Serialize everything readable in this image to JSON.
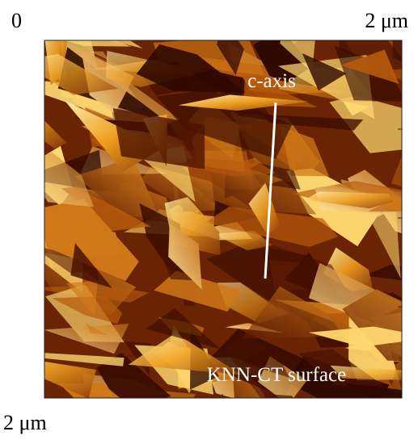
{
  "labels": {
    "origin": "0",
    "top_right": "2 μm",
    "bottom_left": "2 μm"
  },
  "annotations": {
    "axis": "c-axis",
    "surface": "KNN-CT surface"
  }
}
